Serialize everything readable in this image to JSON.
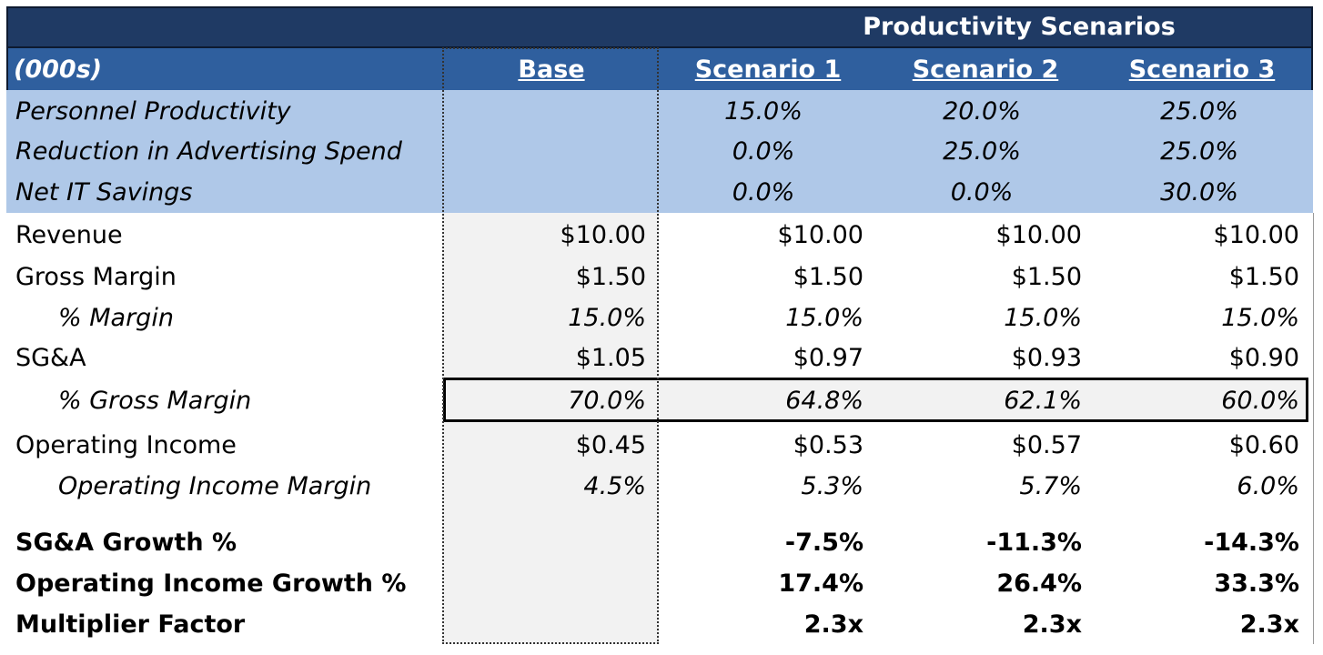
{
  "header": {
    "title": "Productivity Scenarios",
    "units_label": "(000s)",
    "columns": [
      "Base",
      "Scenario 1",
      "Scenario 2",
      "Scenario 3"
    ]
  },
  "drivers": [
    {
      "label": "Personnel Productivity",
      "values": [
        "15.0%",
        "20.0%",
        "25.0%"
      ]
    },
    {
      "label": "Reduction in Advertising Spend",
      "values": [
        "0.0%",
        "25.0%",
        "25.0%"
      ]
    },
    {
      "label": "Net IT Savings",
      "values": [
        "0.0%",
        "0.0%",
        "30.0%"
      ]
    }
  ],
  "rows": [
    {
      "label": "Revenue",
      "values": [
        "$10.00",
        "$10.00",
        "$10.00",
        "$10.00"
      ]
    },
    {
      "label": "Gross Margin",
      "values": [
        "$1.50",
        "$1.50",
        "$1.50",
        "$1.50"
      ]
    },
    {
      "label": "% Margin",
      "values": [
        "15.0%",
        "15.0%",
        "15.0%",
        "15.0%"
      ]
    },
    {
      "label": "SG&A",
      "values": [
        "$1.05",
        "$0.97",
        "$0.93",
        "$0.90"
      ]
    },
    {
      "label": "% Gross Margin",
      "values": [
        "70.0%",
        "64.8%",
        "62.1%",
        "60.0%"
      ]
    },
    {
      "label": "Operating Income",
      "values": [
        "$0.45",
        "$0.53",
        "$0.57",
        "$0.60"
      ]
    },
    {
      "label": "Operating Income Margin",
      "values": [
        "4.5%",
        "5.3%",
        "5.7%",
        "6.0%"
      ]
    }
  ],
  "summary": [
    {
      "label": "SG&A Growth %",
      "values": [
        "-7.5%",
        "-11.3%",
        "-14.3%"
      ]
    },
    {
      "label": "Operating Income Growth %",
      "values": [
        "17.4%",
        "26.4%",
        "33.3%"
      ]
    },
    {
      "label": "Multiplier Factor",
      "values": [
        "2.3x",
        "2.3x",
        "2.3x"
      ]
    }
  ],
  "colors": {
    "title_band": "#1f3a64",
    "column_band": "#2f5f9e",
    "driver_band": "#afc8e8",
    "base_shade": "#f2f2f2"
  }
}
